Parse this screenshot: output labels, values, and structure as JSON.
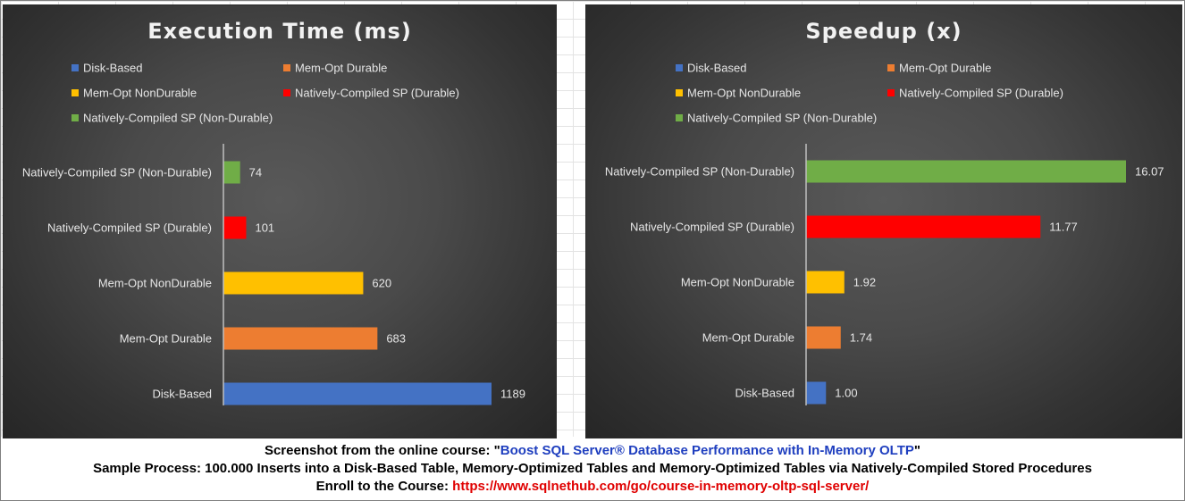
{
  "caption": {
    "line1_prefix": "Screenshot from the online course: \"",
    "course_title": "Boost SQL Server® Database Performance with In-Memory OLTP",
    "line1_suffix": "\"",
    "line2": "Sample Process: 100.000 Inserts into a Disk-Based Table, Memory-Optimized Tables and Memory-Optimized Tables via Natively-Compiled Stored Procedures",
    "line3_prefix": "Enroll to the Course: ",
    "course_url": "https://www.sqlnethub.com/go/course-in-memory-oltp-sql-server/"
  },
  "chart_data": [
    {
      "type": "bar",
      "orientation": "horizontal",
      "title": "Execution Time (ms)",
      "categories": [
        "Disk-Based",
        "Mem-Opt Durable",
        "Mem-Opt NonDurable",
        "Natively-Compiled SP (Durable)",
        "Natively-Compiled SP (Non-Durable)"
      ],
      "values": [
        1189,
        683,
        620,
        101,
        74
      ],
      "data_labels": [
        "1189",
        "683",
        "620",
        "101",
        "74"
      ],
      "colors": [
        "#4472c4",
        "#ed7d31",
        "#ffc000",
        "#ff0000",
        "#70ad47"
      ],
      "legend": [
        "Disk-Based",
        "Mem-Opt Durable",
        "Mem-Opt NonDurable",
        "Natively-Compiled SP (Durable)",
        "Natively-Compiled SP (Non-Durable)"
      ],
      "legend_position": "top",
      "xlim": [
        0,
        1189
      ],
      "grid": false
    },
    {
      "type": "bar",
      "orientation": "horizontal",
      "title": "Speedup (x)",
      "categories": [
        "Disk-Based",
        "Mem-Opt Durable",
        "Mem-Opt NonDurable",
        "Natively-Compiled SP (Durable)",
        "Natively-Compiled SP (Non-Durable)"
      ],
      "values": [
        1.0,
        1.74,
        1.92,
        11.77,
        16.07
      ],
      "data_labels": [
        "1.00",
        "1.74",
        "1.92",
        "11.77",
        "16.07"
      ],
      "colors": [
        "#4472c4",
        "#ed7d31",
        "#ffc000",
        "#ff0000",
        "#70ad47"
      ],
      "legend": [
        "Disk-Based",
        "Mem-Opt Durable",
        "Mem-Opt NonDurable",
        "Natively-Compiled SP (Durable)",
        "Natively-Compiled SP (Non-Durable)"
      ],
      "legend_position": "top",
      "xlim": [
        0,
        16.07
      ],
      "grid": false
    }
  ]
}
